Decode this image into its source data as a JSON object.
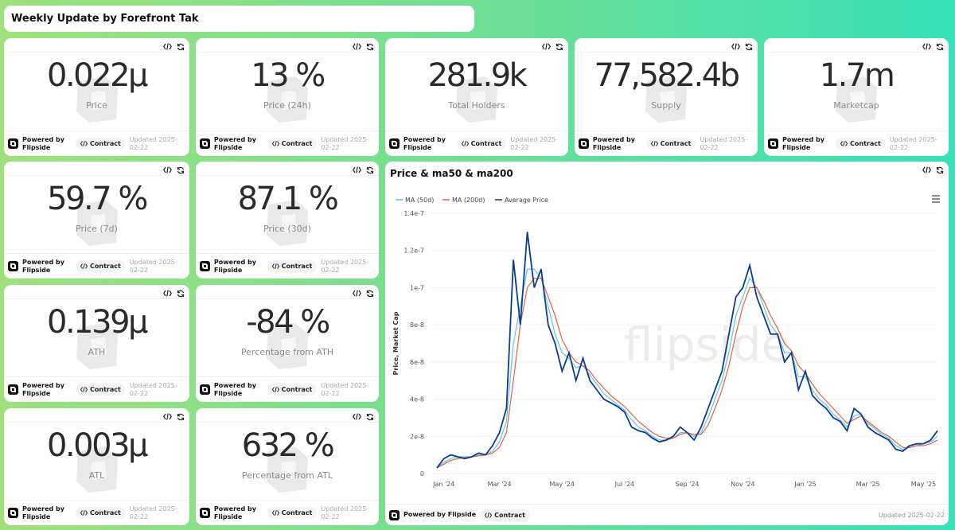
{
  "header": {
    "title": "Weekly Update by Forefront Tak"
  },
  "footer": {
    "powered": "Powered by Flipside",
    "contract": "Contract",
    "updated": "Updated 2025-02-22"
  },
  "cards": [
    {
      "value": "0.022µ",
      "label": "Price"
    },
    {
      "value": "13 %",
      "label": "Price (24h)"
    },
    {
      "value": "281.9k",
      "label": "Total Holders"
    },
    {
      "value": "77,582.4b",
      "label": "Supply"
    },
    {
      "value": "1.7m",
      "label": "Marketcap"
    },
    {
      "value": "59.7 %",
      "label": "Price (7d)"
    },
    {
      "value": "87.1 %",
      "label": "Price (30d)"
    },
    {
      "value": "0.139µ",
      "label": "ATH"
    },
    {
      "value": "-84 %",
      "label": "Percentage from ATH"
    },
    {
      "value": "0.003µ",
      "label": "ATL"
    },
    {
      "value": "632 %",
      "label": "Percentage from ATL"
    }
  ],
  "chart_data": {
    "type": "line",
    "title": "Price & ma50 & ma200",
    "y_label": "Price, Market Cap",
    "watermark": "flipside",
    "categories": [
      null,
      "Jan '24",
      null,
      null,
      null,
      null,
      null,
      null,
      null,
      "Mar '24",
      null,
      null,
      null,
      null,
      null,
      null,
      null,
      null,
      "May '24",
      null,
      null,
      null,
      null,
      null,
      null,
      null,
      null,
      "Jul '24",
      null,
      null,
      null,
      null,
      null,
      null,
      null,
      null,
      "Sep '24",
      null,
      null,
      null,
      null,
      null,
      null,
      null,
      "Nov '24",
      null,
      null,
      null,
      null,
      null,
      null,
      null,
      null,
      "Jan '25",
      null,
      null,
      null,
      null,
      null,
      null,
      null,
      null,
      "Mar '25",
      null,
      null,
      null,
      null,
      null,
      null,
      null,
      "May '25",
      null,
      null
    ],
    "ylim": [
      0,
      1.4e-07
    ],
    "yticks": [
      0,
      2e-08,
      4e-08,
      6e-08,
      8e-08,
      1e-07,
      1.2e-07,
      1.4e-07
    ],
    "series": [
      {
        "name": "MA (50d)",
        "color": "#5ec6ea",
        "values": [
          3e-09,
          6e-09,
          8e-09,
          9e-09,
          9e-09,
          9e-09,
          1e-08,
          1e-08,
          1.2e-08,
          1.7e-08,
          2.8e-08,
          7e-08,
          9e-08,
          1.1e-07,
          1.1e-07,
          1.05e-07,
          9e-08,
          7.5e-08,
          6.5e-08,
          6.2e-08,
          5.7e-08,
          5.8e-08,
          5.3e-08,
          4.8e-08,
          4.3e-08,
          4e-08,
          3.7e-08,
          3.4e-08,
          2.9e-08,
          2.5e-08,
          2.3e-08,
          2e-08,
          1.8e-08,
          1.8e-08,
          1.9e-08,
          2.2e-08,
          2.2e-08,
          2e-08,
          2.2e-08,
          3e-08,
          4e-08,
          5e-08,
          6.5e-08,
          8.5e-08,
          9.5e-08,
          1.05e-07,
          1e-07,
          9e-08,
          8e-08,
          7.5e-08,
          6.5e-08,
          6.5e-08,
          5.2e-08,
          5.2e-08,
          4.5e-08,
          4e-08,
          3.7e-08,
          3.2e-08,
          2.9e-08,
          2.5e-08,
          3.1e-08,
          3.2e-08,
          2.7e-08,
          2.4e-08,
          2.1e-08,
          1.9e-08,
          1.5e-08,
          1.3e-08,
          1.4e-08,
          1.5e-08,
          1.6e-08,
          1.7e-08,
          2e-08
        ]
      },
      {
        "name": "MA (200d)",
        "color": "#e8613d",
        "values": [
          3e-09,
          5e-09,
          7e-09,
          8e-09,
          8.5e-09,
          9e-09,
          9.5e-09,
          1e-08,
          1.1e-08,
          1.4e-08,
          2.2e-08,
          5e-08,
          8e-08,
          1e-07,
          1.05e-07,
          1.05e-07,
          9.5e-08,
          8.5e-08,
          7.2e-08,
          6.5e-08,
          6e-08,
          5.8e-08,
          5.5e-08,
          5e-08,
          4.6e-08,
          4.2e-08,
          3.9e-08,
          3.6e-08,
          3.2e-08,
          2.8e-08,
          2.5e-08,
          2.2e-08,
          2e-08,
          1.9e-08,
          1.9e-08,
          2.1e-08,
          2.2e-08,
          2.1e-08,
          2.1e-08,
          2.6e-08,
          3.5e-08,
          4.5e-08,
          5.8e-08,
          7.5e-08,
          9e-08,
          1e-07,
          1e-07,
          9.3e-08,
          8.5e-08,
          7.8e-08,
          7e-08,
          6.6e-08,
          5.8e-08,
          5.4e-08,
          4.8e-08,
          4.3e-08,
          3.9e-08,
          3.5e-08,
          3.1e-08,
          2.7e-08,
          2.9e-08,
          3.1e-08,
          2.8e-08,
          2.5e-08,
          2.2e-08,
          2e-08,
          1.7e-08,
          1.4e-08,
          1.4e-08,
          1.5e-08,
          1.5e-08,
          1.6e-08,
          1.8e-08
        ]
      },
      {
        "name": "Average Price",
        "color": "#0d3d8e",
        "values": [
          3e-09,
          8e-09,
          1e-08,
          9e-09,
          8e-09,
          9e-09,
          1.1e-08,
          1e-08,
          1.5e-08,
          2.2e-08,
          3.5e-08,
          1.15e-07,
          8e-08,
          1.3e-07,
          1e-07,
          1.1e-07,
          8e-08,
          7e-08,
          5.5e-08,
          6.5e-08,
          5e-08,
          6.2e-08,
          5e-08,
          4.5e-08,
          4e-08,
          3.8e-08,
          3.6e-08,
          3.3e-08,
          2.5e-08,
          2.3e-08,
          2.2e-08,
          1.9e-08,
          1.7e-08,
          1.8e-08,
          2e-08,
          2.5e-08,
          2.2e-08,
          1.8e-08,
          2.5e-08,
          3.5e-08,
          4.5e-08,
          5.5e-08,
          7.5e-08,
          9.5e-08,
          1e-07,
          1.12e-07,
          9.5e-08,
          8.5e-08,
          7.5e-08,
          7.5e-08,
          6e-08,
          6.5e-08,
          4.5e-08,
          5.5e-08,
          4.2e-08,
          3.8e-08,
          3.5e-08,
          3e-08,
          2.8e-08,
          2.3e-08,
          3.5e-08,
          3.2e-08,
          2.5e-08,
          2.2e-08,
          2e-08,
          1.8e-08,
          1.3e-08,
          1.2e-08,
          1.5e-08,
          1.6e-08,
          1.6e-08,
          1.8e-08,
          2.3e-08
        ]
      }
    ]
  }
}
